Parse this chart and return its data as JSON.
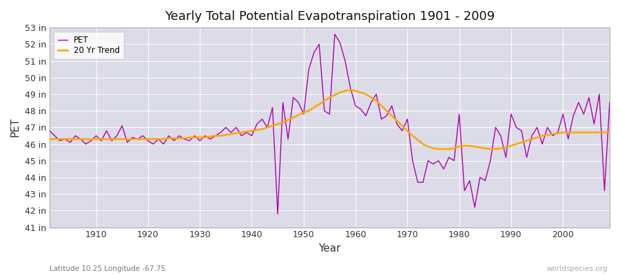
{
  "title": "Yearly Total Potential Evapotranspiration 1901 - 2009",
  "xlabel": "Year",
  "ylabel": "PET",
  "subtitle_left": "Latitude 10.25 Longitude -67.75",
  "subtitle_right": "worldspecies.org",
  "pet_color": "#aa00aa",
  "trend_color": "#FFA500",
  "bg_color": "#dcdce8",
  "fig_color": "#ffffff",
  "ylim": [
    41,
    53
  ],
  "yticks": [
    41,
    42,
    43,
    44,
    45,
    46,
    47,
    48,
    49,
    50,
    51,
    52,
    53
  ],
  "years": [
    1901,
    1902,
    1903,
    1904,
    1905,
    1906,
    1907,
    1908,
    1909,
    1910,
    1911,
    1912,
    1913,
    1914,
    1915,
    1916,
    1917,
    1918,
    1919,
    1920,
    1921,
    1922,
    1923,
    1924,
    1925,
    1926,
    1927,
    1928,
    1929,
    1930,
    1931,
    1932,
    1933,
    1934,
    1935,
    1936,
    1937,
    1938,
    1939,
    1940,
    1941,
    1942,
    1943,
    1944,
    1945,
    1946,
    1947,
    1948,
    1949,
    1950,
    1951,
    1952,
    1953,
    1954,
    1955,
    1956,
    1957,
    1958,
    1959,
    1960,
    1961,
    1962,
    1963,
    1964,
    1965,
    1966,
    1967,
    1968,
    1969,
    1970,
    1971,
    1972,
    1973,
    1974,
    1975,
    1976,
    1977,
    1978,
    1979,
    1980,
    1981,
    1982,
    1983,
    1984,
    1985,
    1986,
    1987,
    1988,
    1989,
    1990,
    1991,
    1992,
    1993,
    1994,
    1995,
    1996,
    1997,
    1998,
    1999,
    2000,
    2001,
    2002,
    2003,
    2004,
    2005,
    2006,
    2007,
    2008,
    2009
  ],
  "pet_values": [
    46.8,
    46.5,
    46.2,
    46.3,
    46.1,
    46.5,
    46.3,
    46.0,
    46.2,
    46.5,
    46.2,
    46.8,
    46.2,
    46.5,
    47.1,
    46.1,
    46.4,
    46.3,
    46.5,
    46.2,
    46.0,
    46.3,
    46.0,
    46.5,
    46.2,
    46.5,
    46.3,
    46.2,
    46.5,
    46.2,
    46.5,
    46.3,
    46.5,
    46.7,
    47.0,
    46.7,
    47.0,
    46.5,
    46.7,
    46.5,
    47.2,
    47.5,
    47.0,
    48.2,
    41.8,
    48.5,
    46.3,
    48.8,
    48.5,
    47.8,
    50.5,
    51.5,
    52.0,
    48.0,
    47.8,
    52.6,
    52.1,
    51.0,
    49.4,
    48.3,
    48.1,
    47.7,
    48.5,
    49.0,
    47.5,
    47.7,
    48.3,
    47.2,
    46.8,
    47.5,
    45.0,
    43.7,
    43.7,
    45.0,
    44.8,
    45.0,
    44.5,
    45.2,
    45.0,
    47.8,
    43.2,
    43.8,
    42.2,
    44.0,
    43.8,
    45.0,
    47.0,
    46.5,
    45.2,
    47.8,
    47.0,
    46.8,
    45.2,
    46.5,
    47.0,
    46.0,
    47.0,
    46.5,
    46.7,
    47.8,
    46.3,
    47.7,
    48.5,
    47.8,
    48.8,
    47.2,
    49.0,
    43.2,
    48.5
  ],
  "trend_values": [
    46.3,
    46.3,
    46.3,
    46.3,
    46.3,
    46.3,
    46.3,
    46.3,
    46.3,
    46.3,
    46.3,
    46.3,
    46.3,
    46.3,
    46.3,
    46.3,
    46.3,
    46.3,
    46.3,
    46.3,
    46.3,
    46.3,
    46.3,
    46.35,
    46.35,
    46.35,
    46.35,
    46.4,
    46.4,
    46.4,
    46.4,
    46.45,
    46.5,
    46.5,
    46.55,
    46.6,
    46.65,
    46.7,
    46.75,
    46.8,
    46.85,
    46.9,
    47.0,
    47.1,
    47.2,
    47.3,
    47.45,
    47.6,
    47.75,
    47.9,
    48.0,
    48.2,
    48.4,
    48.6,
    48.8,
    48.95,
    49.1,
    49.2,
    49.25,
    49.2,
    49.1,
    49.0,
    48.8,
    48.6,
    48.3,
    48.0,
    47.7,
    47.4,
    47.1,
    46.8,
    46.5,
    46.25,
    46.0,
    45.85,
    45.75,
    45.7,
    45.7,
    45.7,
    45.75,
    45.85,
    45.9,
    45.9,
    45.85,
    45.8,
    45.75,
    45.7,
    45.7,
    45.75,
    45.8,
    45.9,
    46.0,
    46.1,
    46.2,
    46.3,
    46.4,
    46.5,
    46.55,
    46.6,
    46.65,
    46.7,
    46.7,
    46.7,
    46.7,
    46.7,
    46.7,
    46.7,
    46.7,
    46.7,
    46.7
  ]
}
